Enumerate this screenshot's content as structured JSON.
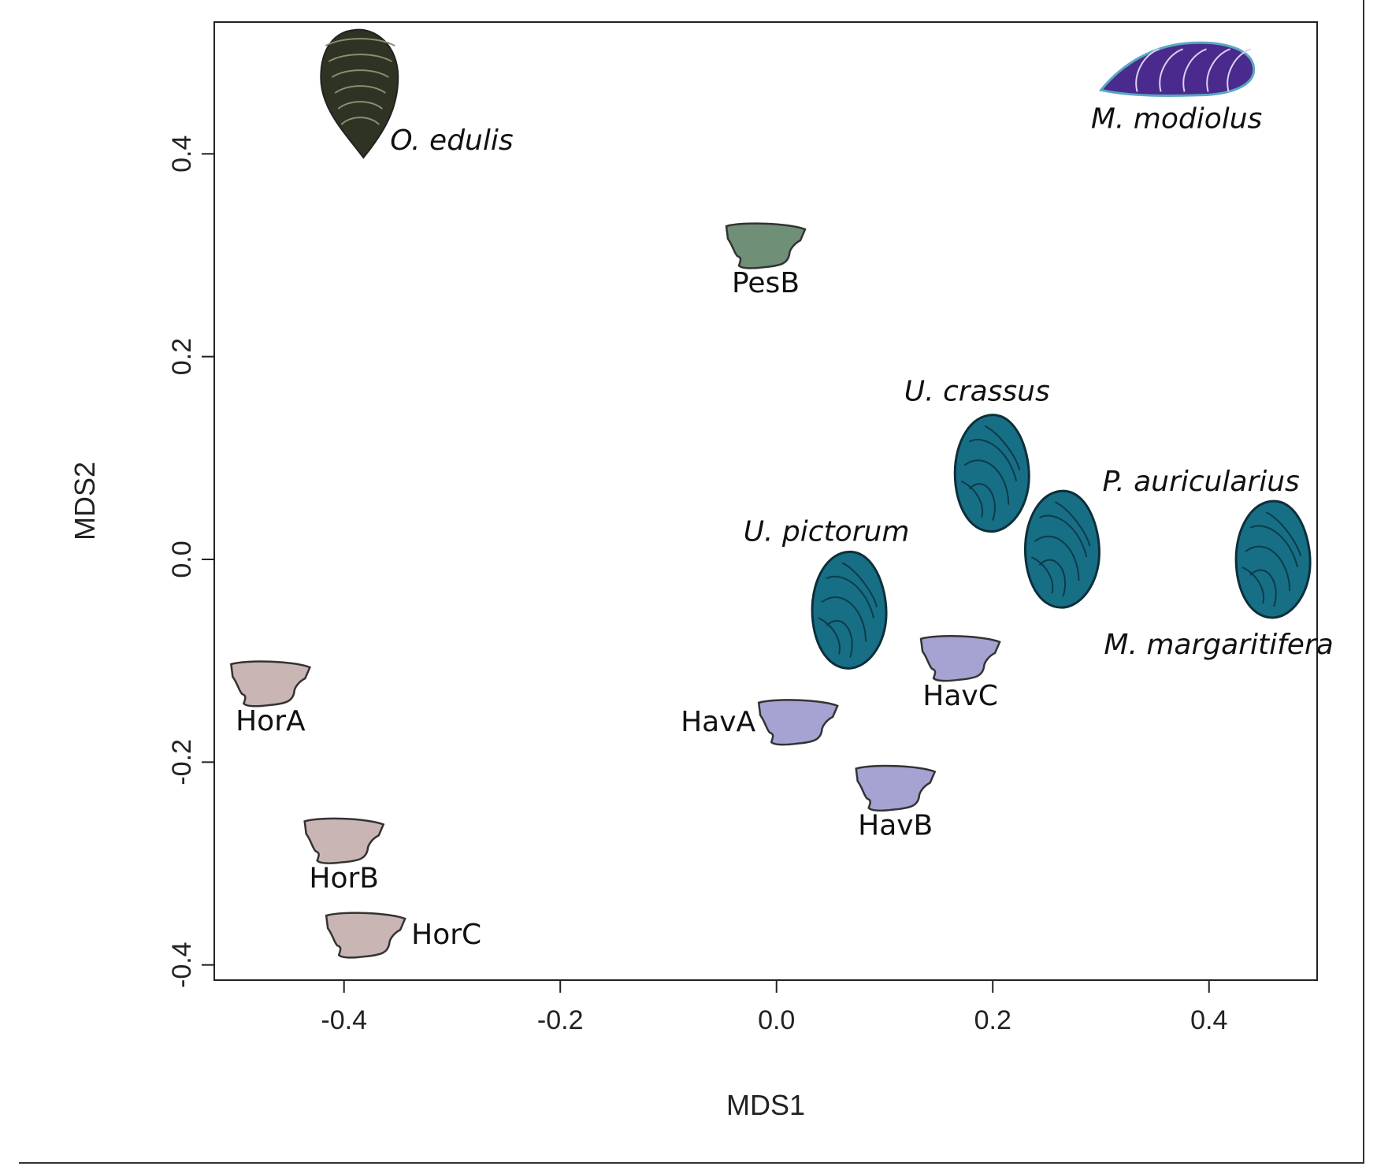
{
  "chart_data": {
    "type": "scatter",
    "xlabel": "MDS1",
    "ylabel": "MDS2",
    "xlim": [
      -0.52,
      0.5
    ],
    "ylim": [
      -0.415,
      0.53
    ],
    "xticks": [
      "-0.4",
      "-0.2",
      "0.0",
      "0.2",
      "0.4"
    ],
    "yticks": [
      "-0.4",
      "-0.2",
      "0.0",
      "0.2",
      "0.4"
    ],
    "grid": false,
    "points": [
      {
        "label": "O. edulis",
        "x": -0.385,
        "y": 0.46,
        "shape": "oyster",
        "color": "#2f3324",
        "italic": true,
        "label_pos": "right"
      },
      {
        "label": "M. modiolus",
        "x": 0.37,
        "y": 0.48,
        "shape": "mussel",
        "color": "#4a2a8c",
        "italic": true,
        "label_pos": "below"
      },
      {
        "label": "PesB",
        "x": -0.01,
        "y": 0.31,
        "shape": "crown",
        "color": "#6f8f77",
        "italic": false,
        "label_pos": "below"
      },
      {
        "label": "U. crassus",
        "x": 0.2,
        "y": 0.085,
        "shape": "clam",
        "color": "#176f86",
        "italic": true,
        "label_pos": "above"
      },
      {
        "label": "P. auricularius",
        "x": 0.265,
        "y": 0.01,
        "shape": "clam",
        "color": "#176f86",
        "italic": true,
        "label_pos": "upper-right"
      },
      {
        "label": "M. margaritifera",
        "x": 0.46,
        "y": 0.0,
        "shape": "clam",
        "color": "#176f86",
        "italic": true,
        "label_pos": "lower-left"
      },
      {
        "label": "U. pictorum",
        "x": 0.068,
        "y": -0.05,
        "shape": "clam",
        "color": "#176f86",
        "italic": true,
        "label_pos": "upper-left"
      },
      {
        "label": "HavC",
        "x": 0.17,
        "y": -0.097,
        "shape": "crown",
        "color": "#a5a3d1",
        "italic": false,
        "label_pos": "below"
      },
      {
        "label": "HavA",
        "x": 0.02,
        "y": -0.16,
        "shape": "crown",
        "color": "#a5a3d1",
        "italic": false,
        "label_pos": "left"
      },
      {
        "label": "HavB",
        "x": 0.11,
        "y": -0.225,
        "shape": "crown",
        "color": "#a5a3d1",
        "italic": false,
        "label_pos": "below"
      },
      {
        "label": "HorA",
        "x": -0.468,
        "y": -0.122,
        "shape": "crown",
        "color": "#c9b5b3",
        "italic": false,
        "label_pos": "below"
      },
      {
        "label": "HorB",
        "x": -0.4,
        "y": -0.277,
        "shape": "crown",
        "color": "#c9b5b3",
        "italic": false,
        "label_pos": "below"
      },
      {
        "label": "HorC",
        "x": -0.38,
        "y": -0.37,
        "shape": "crown",
        "color": "#c9b5b3",
        "italic": false,
        "label_pos": "right"
      }
    ]
  }
}
